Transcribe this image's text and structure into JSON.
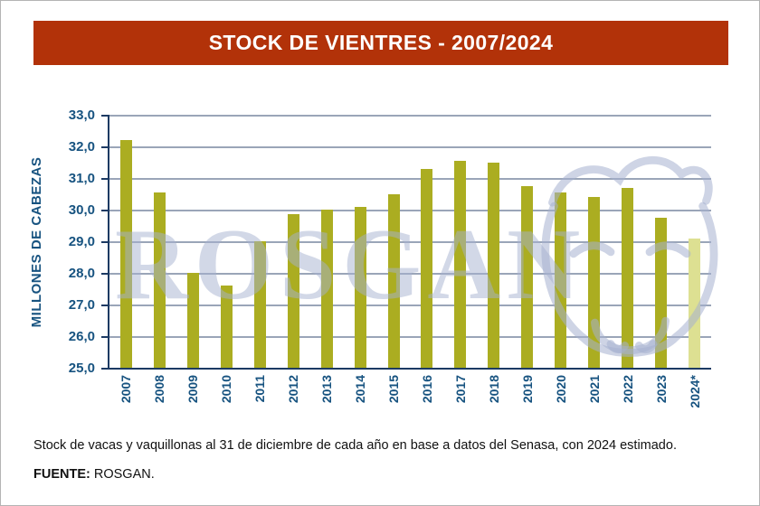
{
  "header": {
    "title": "STOCK DE VIENTRES - 2007/2024"
  },
  "chart_data": {
    "type": "bar",
    "title": "STOCK DE VIENTRES - 2007/2024",
    "categories": [
      "2007",
      "2008",
      "2009",
      "2010",
      "2011",
      "2012",
      "2013",
      "2014",
      "2015",
      "2016",
      "2017",
      "2018",
      "2019",
      "2020",
      "2021",
      "2022",
      "2023",
      "2024*"
    ],
    "values": [
      32.2,
      30.55,
      28.0,
      27.6,
      29.0,
      29.85,
      30.0,
      30.1,
      30.5,
      31.3,
      31.55,
      31.5,
      30.75,
      30.55,
      30.4,
      30.7,
      29.75,
      29.1
    ],
    "xlabel": "",
    "ylabel": "MILLONES DE CABEZAS",
    "ylim": [
      25.0,
      33.0
    ],
    "ytick_step": 1.0,
    "ytick_labels": [
      "33,0",
      "32,0",
      "31,0",
      "30,0",
      "29,0",
      "28,0",
      "27,0",
      "26,0",
      "25,0"
    ],
    "grid": true,
    "legend": "none",
    "bar_color": "#abad21",
    "estimated_bar_color": "#dde092",
    "estimated_index": 17,
    "note_estimated_marker": "*",
    "watermark_text": "ROSGAN"
  },
  "footer": {
    "note": "Stock de vacas y vaquillonas al 31 de diciembre de cada año en base a datos del Senasa, con 2024 estimado.",
    "source_label": "FUENTE:",
    "source_value": " ROSGAN."
  },
  "colors": {
    "header_bg": "#b23209",
    "header_text": "#ffffff",
    "label_blue": "#175380",
    "axis_navy": "#1c3a63",
    "gridline": "#9aa5b8",
    "page_border": "#b4b4b4",
    "watermark": "rgba(166,177,208,0.5)"
  }
}
